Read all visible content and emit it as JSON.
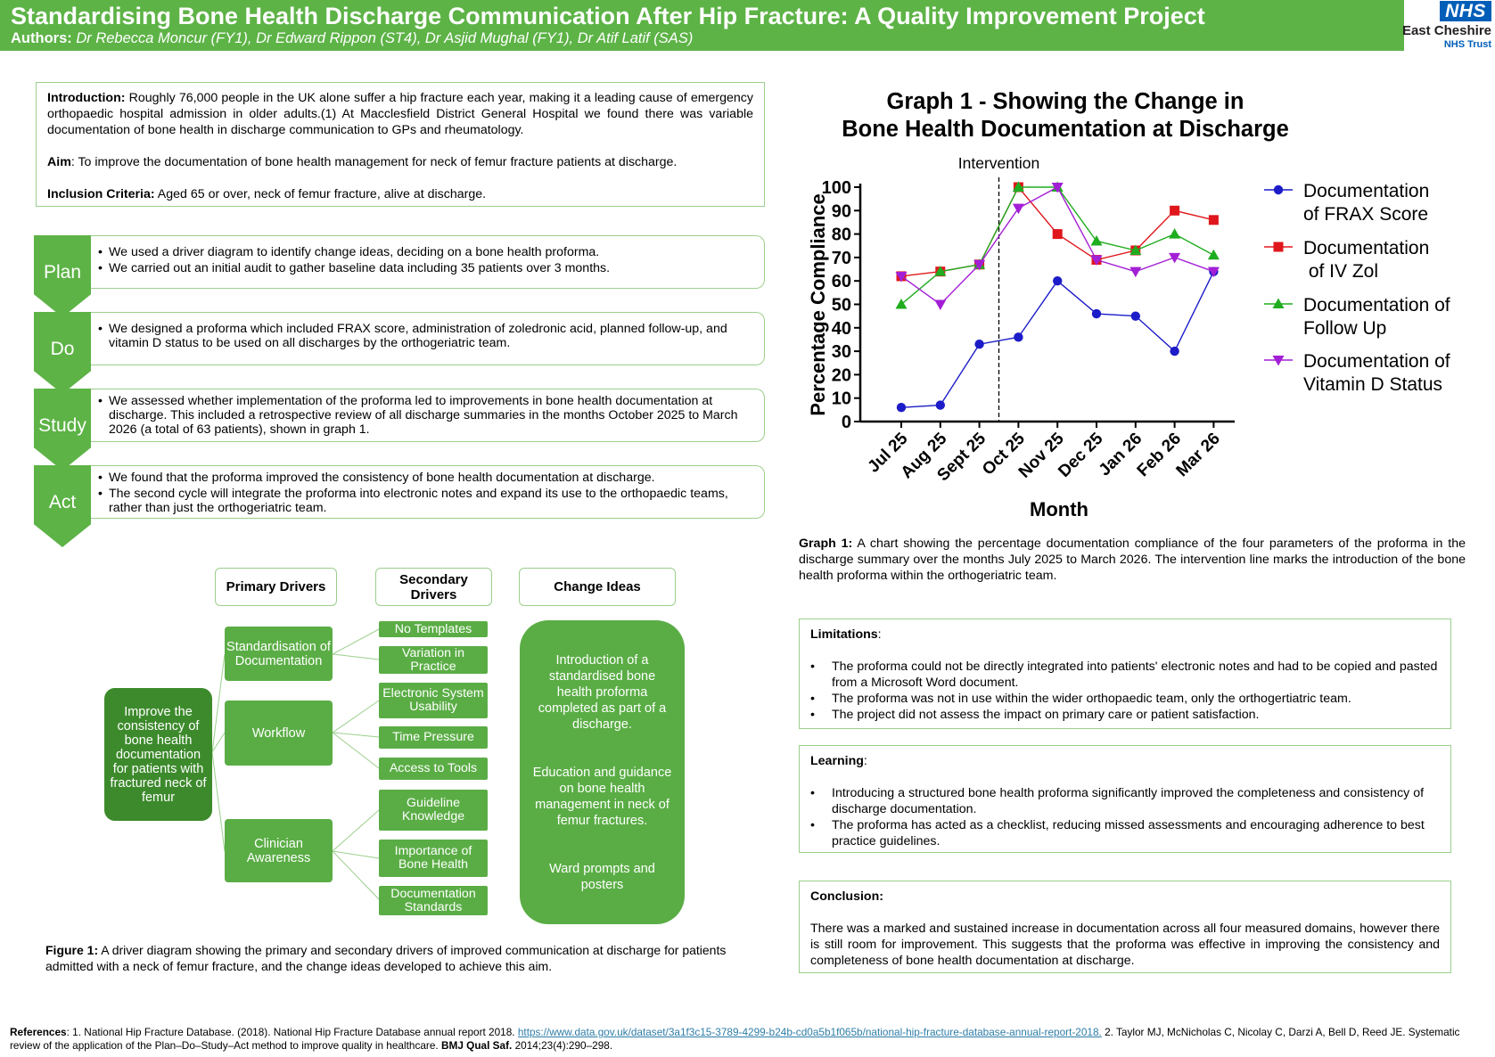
{
  "header": {
    "title": "Standardising Bone Health Discharge Communication After Hip Fracture: A Quality Improvement Project",
    "authors_label": "Authors:",
    "authors": "Dr Rebecca Moncur (FY1),  Dr Edward Rippon (ST4), Dr Asjid Mughal (FY1), Dr Atif Latif (SAS)"
  },
  "logo": {
    "nhs": "NHS",
    "trust": "East Cheshire",
    "sub": "NHS Trust",
    "color": "#005eb8"
  },
  "intro": {
    "intro_label": "Introduction:",
    "intro_text": " Roughly 76,000 people in the UK alone suffer a hip fracture each year, making it a leading cause of emergency orthopaedic hospital admission in older adults.(1) At Macclesfield District General Hospital we found there was variable documentation of bone health in discharge communication to GPs and rheumatology.",
    "aim_label": "Aim",
    "aim_text": ": To improve the documentation of bone health management for neck of femur fracture patients at discharge.",
    "criteria_label": "Inclusion Criteria:",
    "criteria_text": " Aged 65 or over, neck of femur fracture, alive at discharge."
  },
  "pdsa": [
    {
      "label": "Plan",
      "bullets": [
        "We used a driver diagram to identify change ideas, deciding on a bone health proforma.",
        "We carried out an initial audit to gather baseline data including 35 patients over 3 months."
      ]
    },
    {
      "label": "Do",
      "bullets": [
        "We designed a proforma which included FRAX score, administration of zoledronic acid, planned follow-up, and vitamin D status to be used on all discharges by the orthogeriatric team."
      ]
    },
    {
      "label": "Study",
      "bullets": [
        "We assessed whether implementation of the proforma led to improvements in bone health documentation at discharge. This included a retrospective review of all discharge summaries in the months October 2025 to March 2026 (a total of 63 patients), shown in graph 1."
      ]
    },
    {
      "label": "Act",
      "bullets": [
        "We found that the proforma improved the consistency of bone health documentation at discharge.",
        "The second cycle will integrate the proforma into electronic notes and expand its use to the orthopaedic teams, rather than just the orthogeriatric team."
      ]
    }
  ],
  "driver": {
    "primary_header": "Primary Drivers",
    "secondary_header": "Secondary Drivers",
    "change_header": "Change Ideas",
    "aim": "Improve the consistency of bone health documentation for patients with fractured neck of femur",
    "primary": [
      "Standardisation of Documentation",
      "Workflow",
      "Clinician Awareness"
    ],
    "secondary": [
      "No Templates",
      "Variation in Practice",
      "Electronic System Usability",
      "Time Pressure",
      "Access to Tools",
      "Guideline Knowledge",
      "Importance of Bone Health",
      "Documentation Standards"
    ],
    "change_ideas": [
      "Introduction of a standardised bone health proforma completed as part of  a discharge.",
      "Education and guidance on bone health management in neck of femur fractures.",
      "Ward prompts and posters"
    ]
  },
  "fig1": {
    "label": "Figure 1:",
    "text": " A driver diagram showing the primary and secondary drivers of improved communication at discharge for patients admitted with a neck of femur fracture, and the change ideas developed to achieve this aim."
  },
  "chart_data": {
    "type": "line",
    "title": "Graph 1 - Showing the Change in Bone Health Documentation at Discharge",
    "title_line1": "Graph 1 - Showing the Change in",
    "title_line2": "Bone Health Documentation at Discharge",
    "xlabel": "Month",
    "ylabel": "Percentage Compliance",
    "categories": [
      "Jul 25",
      "Aug 25",
      "Sept 25",
      "Oct 25",
      "Nov 25",
      "Dec 25",
      "Jan 26",
      "Feb 26",
      "Mar 26"
    ],
    "ylim": [
      0,
      100
    ],
    "yticks": [
      "0",
      "10",
      "20",
      "30",
      "40",
      "50",
      "60",
      "70",
      "80",
      "90",
      "100"
    ],
    "grid": false,
    "legend_position": "right",
    "annotation": {
      "text": "Intervention",
      "between": [
        "Sept 25",
        "Oct 25"
      ]
    },
    "series": [
      {
        "name": "Documentation of FRAX Score",
        "legend_lines": [
          "Documentation",
          "of FRAX Score"
        ],
        "color": "#1c1cc8",
        "marker": "circle",
        "values": [
          6,
          7,
          33,
          36,
          60,
          46,
          45,
          30,
          64
        ]
      },
      {
        "name": "Documentation of IV Zol",
        "legend_lines": [
          "Documentation",
          " of IV Zol"
        ],
        "color": "#e0161d",
        "marker": "square",
        "values": [
          62,
          64,
          67,
          100,
          80,
          69,
          73,
          90,
          86
        ]
      },
      {
        "name": "Documentation of Follow Up",
        "legend_lines": [
          "Documentation of",
          "Follow Up"
        ],
        "color": "#1fad1f",
        "marker": "triangle-up",
        "values": [
          50,
          64,
          67,
          100,
          100,
          77,
          73,
          80,
          71
        ]
      },
      {
        "name": "Documentation of Vitamin D Status",
        "legend_lines": [
          "Documentation of",
          "Vitamin D Status"
        ],
        "color": "#a31fd6",
        "marker": "triangle-down",
        "values": [
          62,
          50,
          67,
          91,
          100,
          69,
          64,
          70,
          64
        ]
      }
    ]
  },
  "graph1": {
    "label": "Graph 1:",
    "text": " A chart showing the percentage documentation compliance of the four parameters of the proforma in the discharge summary over the months July 2025 to March 2026. The intervention line marks the introduction of the bone health proforma within the orthogeriatric team."
  },
  "limitations": {
    "title": "Limitations",
    "colon": ":",
    "bullets": [
      "The proforma could not be directly integrated into patients' electronic notes and had to be copied and pasted from a Microsoft Word document.",
      "The proforma was not in use within the wider orthopaedic team, only the orthogertiatric team.",
      "The project did not assess the impact on primary care or patient satisfaction."
    ]
  },
  "learning": {
    "title": "Learning",
    "colon": ":",
    "bullets": [
      "Introducing a structured bone health proforma significantly improved the completeness and consistency of discharge documentation.",
      "The proforma has acted  as a checklist, reducing missed assessments and encouraging adherence to best practice guidelines."
    ]
  },
  "conclusion": {
    "title": "Conclusion:",
    "text": "There was a marked and sustained increase in documentation across all four measured domains, however there is still room for improvement. This suggests that the proforma was effective in improving the consistency and completeness of bone health documentation at discharge."
  },
  "references": {
    "label": "References",
    "part1": ": 1. National Hip Fracture Database. (2018). National Hip Fracture Database annual report 2018. ",
    "link": "https://www.data.gov.uk/dataset/3a1f3c15-3789-4299-b24b-cd0a5b1f065b/national-hip-fracture-database-annual-report-2018.",
    "part2": " 2. Taylor MJ, McNicholas C, Nicolay C, Darzi A, Bell D, Reed JE. Systematic review of the application of the Plan–Do–Study–Act method to improve quality in healthcare. ",
    "journal": "BMJ Qual Saf.",
    "part3": " 2014;23(4):290–298."
  }
}
